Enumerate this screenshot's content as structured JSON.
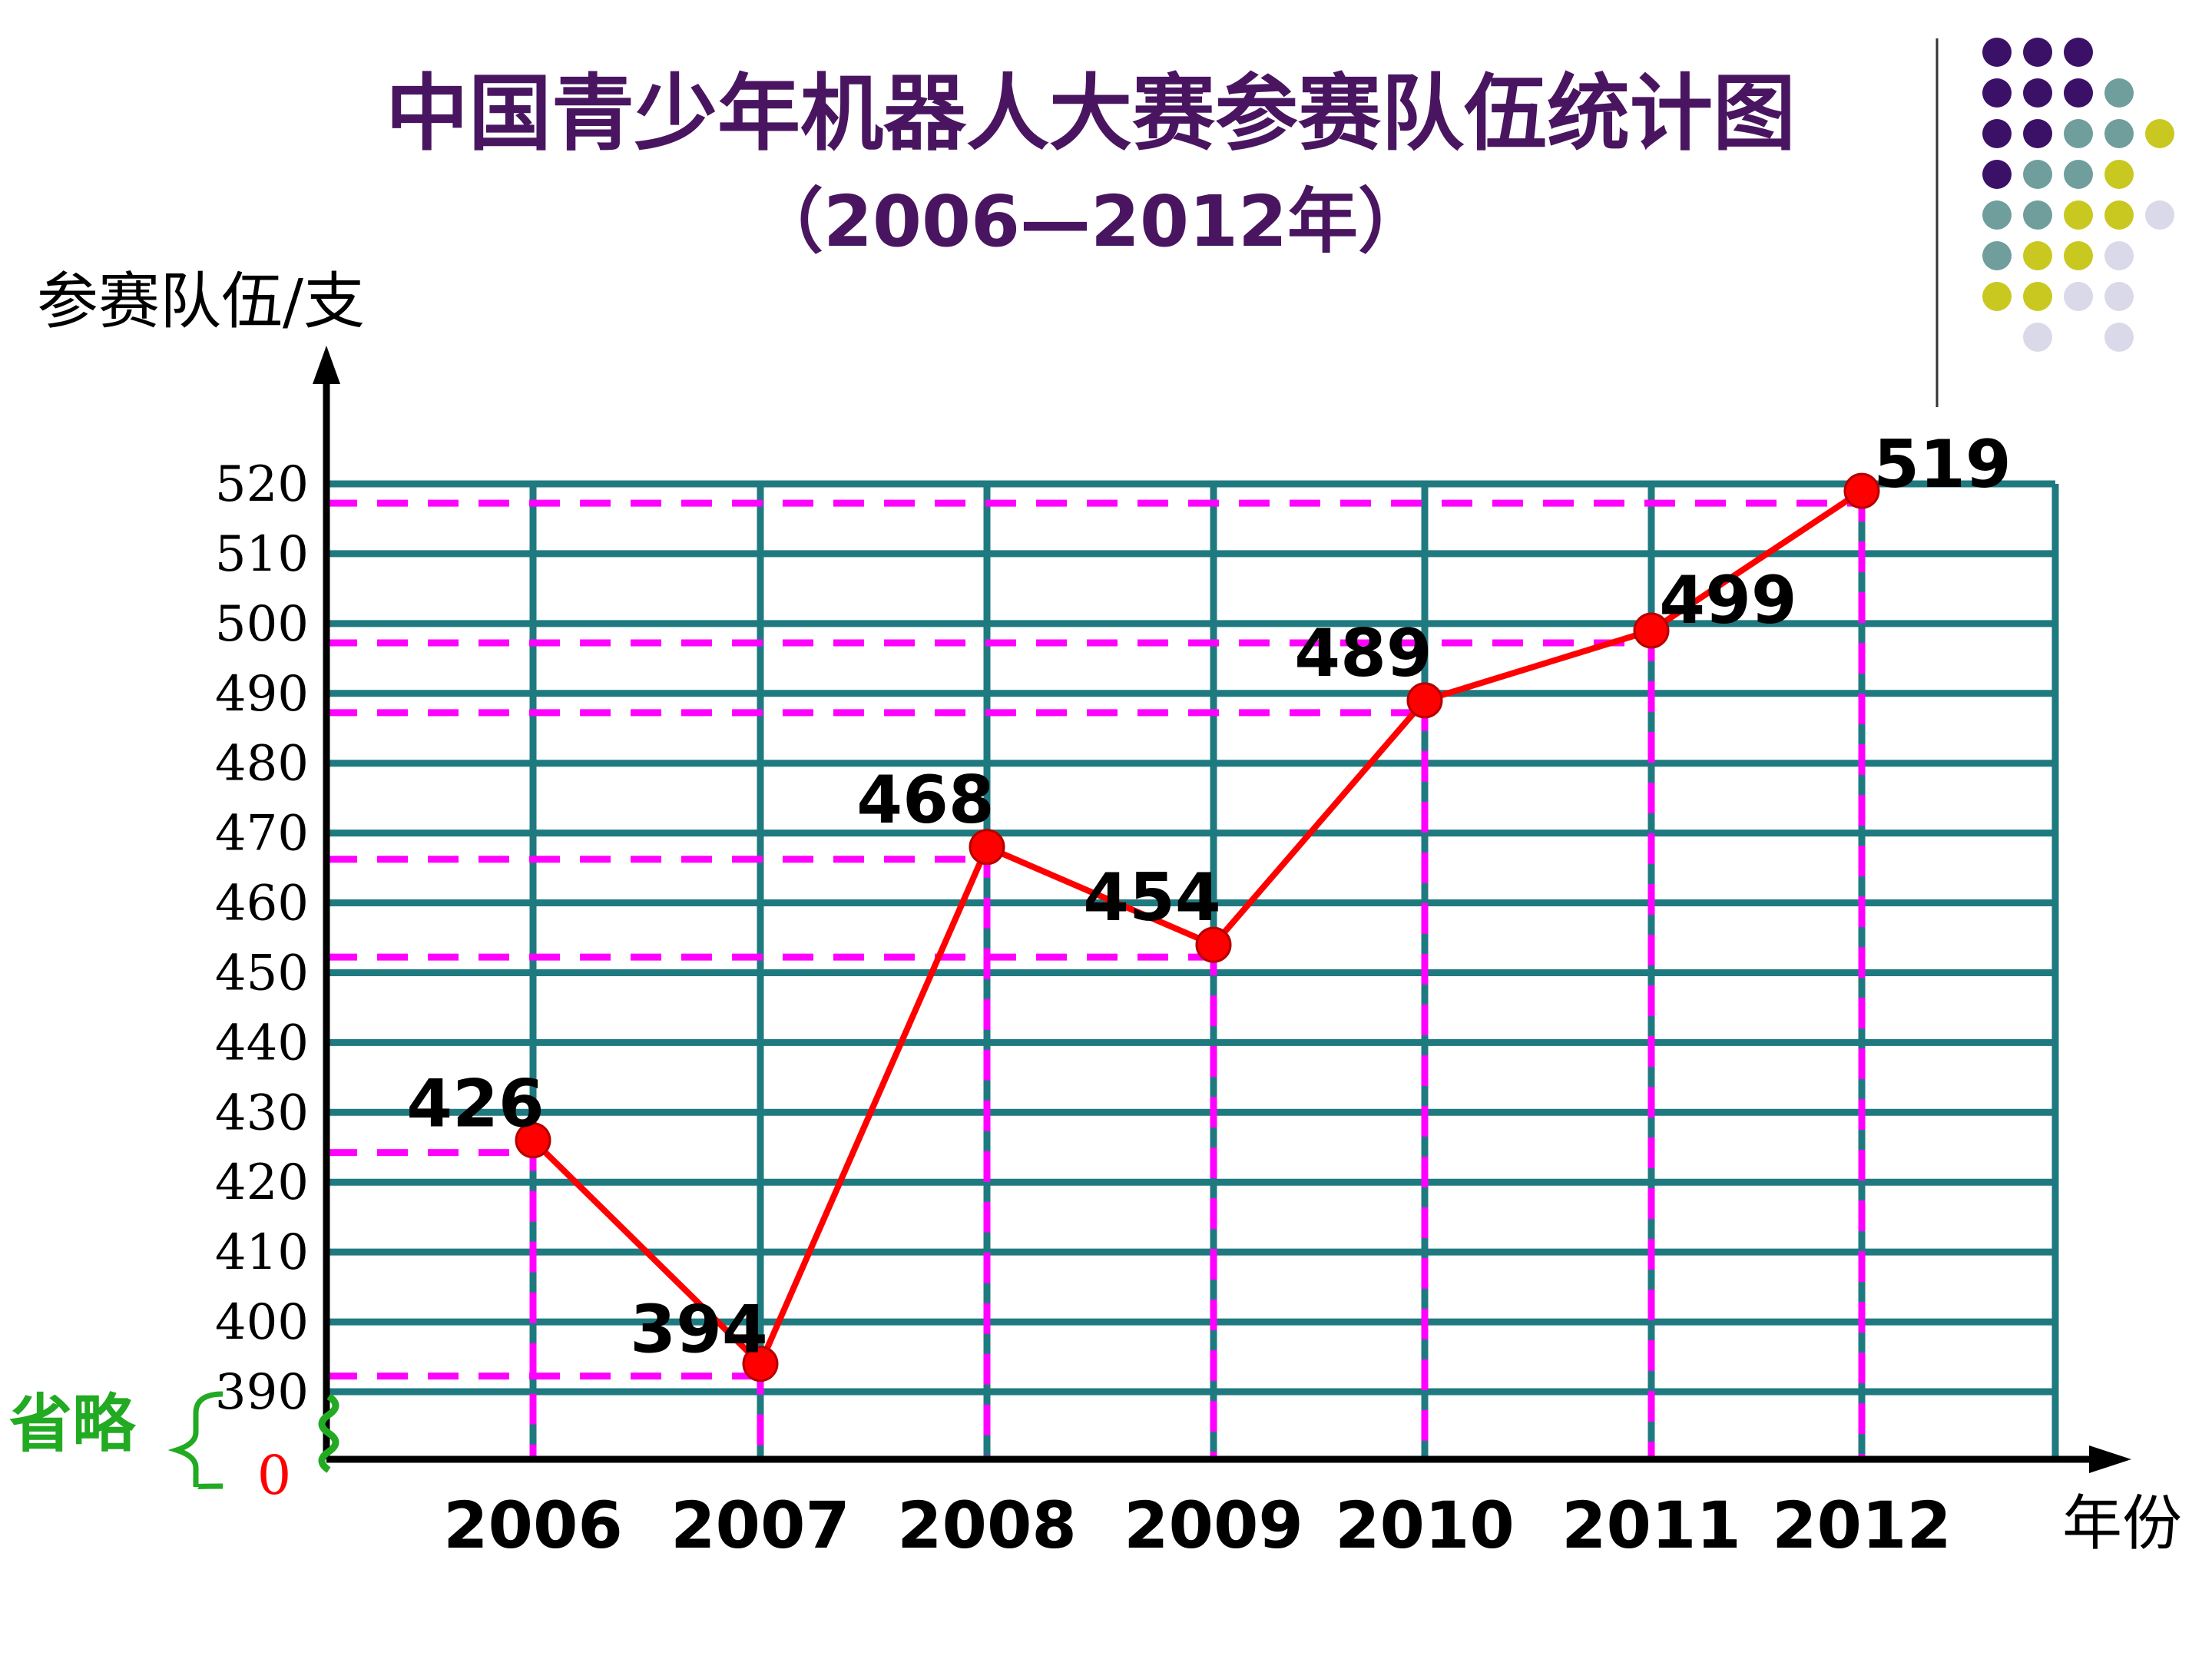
{
  "title": "中国青少年机器人大赛参赛队伍统计图",
  "subtitle": "（2006—2012年）",
  "colors": {
    "title": "#4a1560",
    "grid": "#1f7a80",
    "guide": "#ff00ff",
    "series": "#ff0000",
    "axis": "#000000",
    "break_note": "#22aa22",
    "zero": "#ff0000",
    "dots": [
      "#3b1168",
      "#6f9e9c",
      "#c9c820",
      "#d9d9ea"
    ]
  },
  "decoration": {
    "dot_matrix_icon": "dot-matrix-decoration"
  },
  "break_note": {
    "label": "省略",
    "zero_label": "0"
  },
  "chart_data": {
    "type": "line",
    "title": "中国青少年机器人大赛参赛队伍统计图",
    "subtitle": "（2006—2012年）",
    "xlabel": "年份",
    "ylabel": "参赛队伍/支",
    "categories": [
      "2006",
      "2007",
      "2008",
      "2009",
      "2010",
      "2011",
      "2012"
    ],
    "values": [
      426,
      394,
      468,
      454,
      489,
      499,
      519
    ],
    "data_labels": [
      "426",
      "394",
      "468",
      "454",
      "489",
      "499",
      "519"
    ],
    "ylim": [
      390,
      520
    ],
    "y_ticks": [
      390,
      400,
      410,
      420,
      430,
      440,
      450,
      460,
      470,
      480,
      490,
      500,
      510,
      520
    ],
    "y_tick_labels": [
      "390",
      "400",
      "410",
      "420",
      "430",
      "440",
      "450",
      "460",
      "470",
      "480",
      "490",
      "500",
      "510",
      "520"
    ],
    "axis_break": "0 to 390 omitted",
    "grid": true,
    "guide_lines": true
  }
}
